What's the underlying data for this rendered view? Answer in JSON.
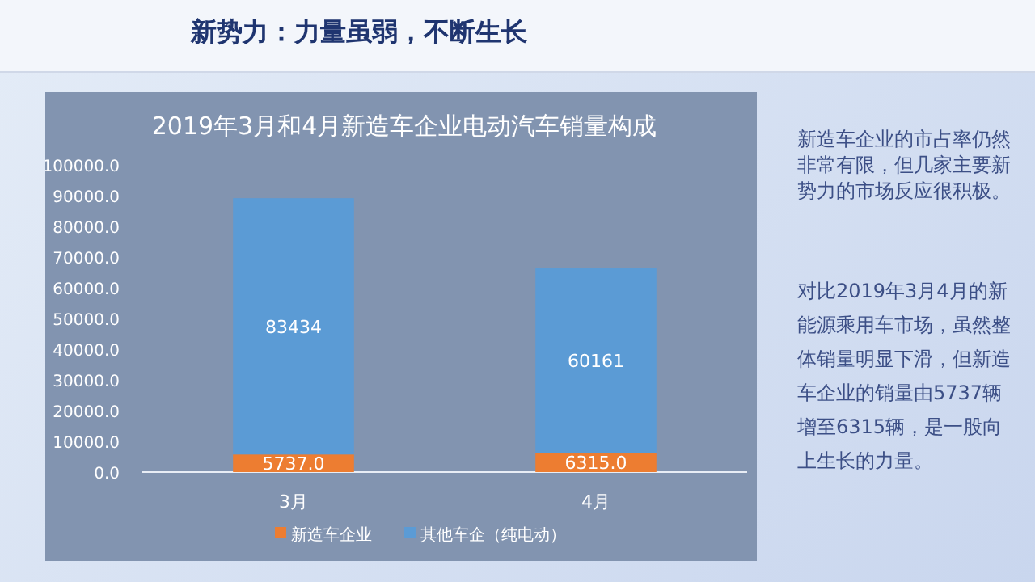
{
  "chart_data": {
    "type": "bar",
    "title": "新势力：力量虽弱，不断生长",
    "subtitle": "2019年3月和4月新造车企业电动汽车销量构成",
    "categories": [
      "3月",
      "4月"
    ],
    "stacked": true,
    "series": [
      {
        "name": "新造车企业",
        "color": "#ed7d31",
        "values": [
          5737,
          6315
        ],
        "value_labels": [
          "5737.0",
          "6315.0"
        ]
      },
      {
        "name": "其他车企（纯电动）",
        "color": "#5b9bd5",
        "values": [
          83434,
          60161
        ],
        "value_labels": [
          "83434",
          "60161"
        ]
      }
    ],
    "ylim": [
      0,
      100000
    ],
    "yticks": [
      {
        "value": 0,
        "label": "0.0"
      },
      {
        "value": 10000,
        "label": "10000.0"
      },
      {
        "value": 20000,
        "label": "20000.0"
      },
      {
        "value": 30000,
        "label": "30000.0"
      },
      {
        "value": 40000,
        "label": "40000.0"
      },
      {
        "value": 50000,
        "label": "50000.0"
      },
      {
        "value": 60000,
        "label": "60000.0"
      },
      {
        "value": 70000,
        "label": "70000.0"
      },
      {
        "value": 80000,
        "label": "80000.0"
      },
      {
        "value": 90000,
        "label": "90000.0"
      },
      {
        "value": 100000,
        "label": "100000.0"
      }
    ],
    "grid": false,
    "legend": "bottom",
    "annotations": [
      "新造车企业的市占率仍然非常有限，但几家主要新势力的市场反应很积极。",
      "对比2019年3月4月的新能源乘用车市场，虽然整体销量明显下滑，但新造车企业的销量由5737辆增至6315辆，是一股向上生长的力量。"
    ]
  }
}
